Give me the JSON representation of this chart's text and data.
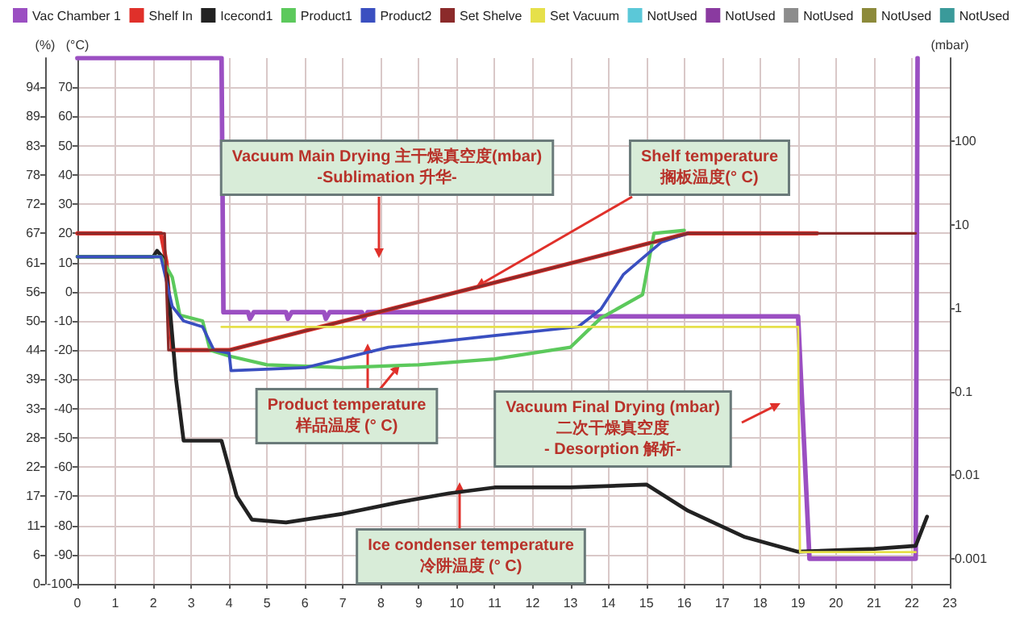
{
  "chart_data": {
    "type": "line",
    "ylabel": "(°C)",
    "y2label": "(mbar)",
    "y3label": "(%)",
    "xlim": [
      0,
      23
    ],
    "xticks": [
      0,
      1,
      2,
      3,
      4,
      5,
      6,
      7,
      8,
      9,
      10,
      11,
      12,
      13,
      14,
      15,
      16,
      17,
      18,
      19,
      20,
      21,
      22,
      23
    ],
    "ylim": [
      -100,
      80
    ],
    "yticks": [
      -100,
      -90,
      -80,
      -70,
      -60,
      -50,
      -40,
      -30,
      -20,
      -10,
      0,
      10,
      20,
      30,
      40,
      50,
      60,
      70
    ],
    "y2lim": [
      0.0005,
      1000
    ],
    "y2ticks": [
      0.001,
      0.01,
      0.1,
      1,
      10,
      100
    ],
    "log": "y2",
    "y3lim": [
      0,
      100
    ],
    "y3ticks": [
      {
        "value": 0,
        "label": "0"
      },
      {
        "value": 5.556,
        "label": "6"
      },
      {
        "value": 11.11,
        "label": "11"
      },
      {
        "value": 16.67,
        "label": "17"
      },
      {
        "value": 22.22,
        "label": "22"
      },
      {
        "value": 27.78,
        "label": "28"
      },
      {
        "value": 33.33,
        "label": "33"
      },
      {
        "value": 38.89,
        "label": "39"
      },
      {
        "value": 44.44,
        "label": "44"
      },
      {
        "value": 50,
        "label": "50"
      },
      {
        "value": 55.56,
        "label": "56"
      },
      {
        "value": 61.11,
        "label": "61"
      },
      {
        "value": 66.67,
        "label": "67"
      },
      {
        "value": 72.22,
        "label": "72"
      },
      {
        "value": 77.78,
        "label": "78"
      },
      {
        "value": 83.33,
        "label": "83"
      },
      {
        "value": 88.89,
        "label": "89"
      },
      {
        "value": 94.44,
        "label": "94"
      }
    ],
    "grid": true,
    "legend": "top",
    "series": [
      {
        "name": "Vac Chamber 1",
        "color": "#9b4fc2",
        "axis": "y2",
        "x": [
          0,
          3.8,
          3.85,
          4.5,
          4.55,
          4.65,
          5.5,
          5.55,
          5.65,
          6.5,
          6.55,
          6.65,
          7.5,
          7.55,
          7.65,
          13.6,
          13.65,
          19,
          19.3,
          22.1,
          22.15
        ],
        "values": [
          1000,
          1000,
          0.9,
          0.9,
          0.75,
          0.9,
          0.9,
          0.75,
          0.9,
          0.9,
          0.75,
          0.9,
          0.9,
          0.75,
          0.9,
          0.9,
          0.8,
          0.8,
          0.001,
          0.001,
          1000
        ]
      },
      {
        "name": "Shelf In",
        "color": "#e0302a",
        "x": [
          0,
          2.2,
          2.35,
          2.5,
          4,
          16.1,
          19.5
        ],
        "values": [
          20,
          20,
          10,
          -20,
          -20,
          20,
          20
        ]
      },
      {
        "name": "Icecond1",
        "color": "#222222",
        "x": [
          0,
          2,
          2.1,
          2.3,
          2.4,
          2.6,
          2.8,
          3.8,
          4.2,
          4.6,
          5.5,
          7,
          8.5,
          9.8,
          11,
          13,
          15,
          16.1,
          17.6,
          19,
          21,
          22.1,
          22.4
        ],
        "values": [
          12,
          12,
          14,
          11,
          0,
          -30,
          -51,
          -51,
          -70,
          -78,
          -79,
          -76,
          -72,
          -69,
          -67,
          -67,
          -66,
          -75,
          -84,
          -89,
          -88,
          -87,
          -77
        ]
      },
      {
        "name": "Product1",
        "color": "#5cc95c",
        "x": [
          0,
          2.2,
          2.5,
          2.7,
          3.3,
          3.5,
          4,
          5,
          7,
          9,
          11,
          13,
          13.8,
          14.9,
          15.2,
          16
        ],
        "values": [
          12,
          12,
          5,
          -8,
          -10,
          -20,
          -22,
          -25,
          -26,
          -25,
          -23,
          -19,
          -9,
          -1,
          20,
          21
        ]
      },
      {
        "name": "Product2",
        "color": "#3a4fc0",
        "x": [
          0,
          2.2,
          2.5,
          2.8,
          3.3,
          3.6,
          4,
          4.05,
          6,
          8.2,
          11,
          13.2,
          13.8,
          14.4,
          15.4,
          16.1
        ],
        "values": [
          12,
          12,
          -5,
          -10,
          -12,
          -20,
          -21,
          -27,
          -26,
          -19,
          -15,
          -12,
          -6,
          6,
          17,
          20
        ]
      },
      {
        "name": "Set Shelve",
        "color": "#8b2a2a",
        "x": [
          0,
          2.3,
          2.4,
          4,
          16.1,
          22.1
        ],
        "values": [
          20,
          20,
          -20,
          -20,
          20,
          20
        ]
      },
      {
        "name": "Set Vacuum",
        "color": "#e6e04a",
        "axis": "y2",
        "x": [
          3.8,
          19,
          19.05,
          22.1
        ],
        "values": [
          0.6,
          0.6,
          0.0012,
          0.0012
        ]
      },
      {
        "name": "NotUsed",
        "color": "#5bc8d8"
      },
      {
        "name": "NotUsed",
        "color": "#8a3aa0"
      },
      {
        "name": "NotUsed",
        "color": "#8c8c8c"
      },
      {
        "name": "NotUsed",
        "color": "#8c8a3a"
      },
      {
        "name": "NotUsed",
        "color": "#3a9a9a"
      }
    ],
    "annotations": [
      "Vacuum Main Drying 主干燥真空度(mbar)\n-Sublimation 升华-",
      "Shelf temperature\n搁板温度(° C)",
      {
        "text": "Product temperature\n样品温度 (° C)",
        "x": 8.5,
        "y": -25
      },
      "Vacuum Final Drying (mbar)\n二次干燥真空度\n- Desorption 解析-",
      "Ice condenser temperature\n冷阱温度 (° C)"
    ]
  }
}
